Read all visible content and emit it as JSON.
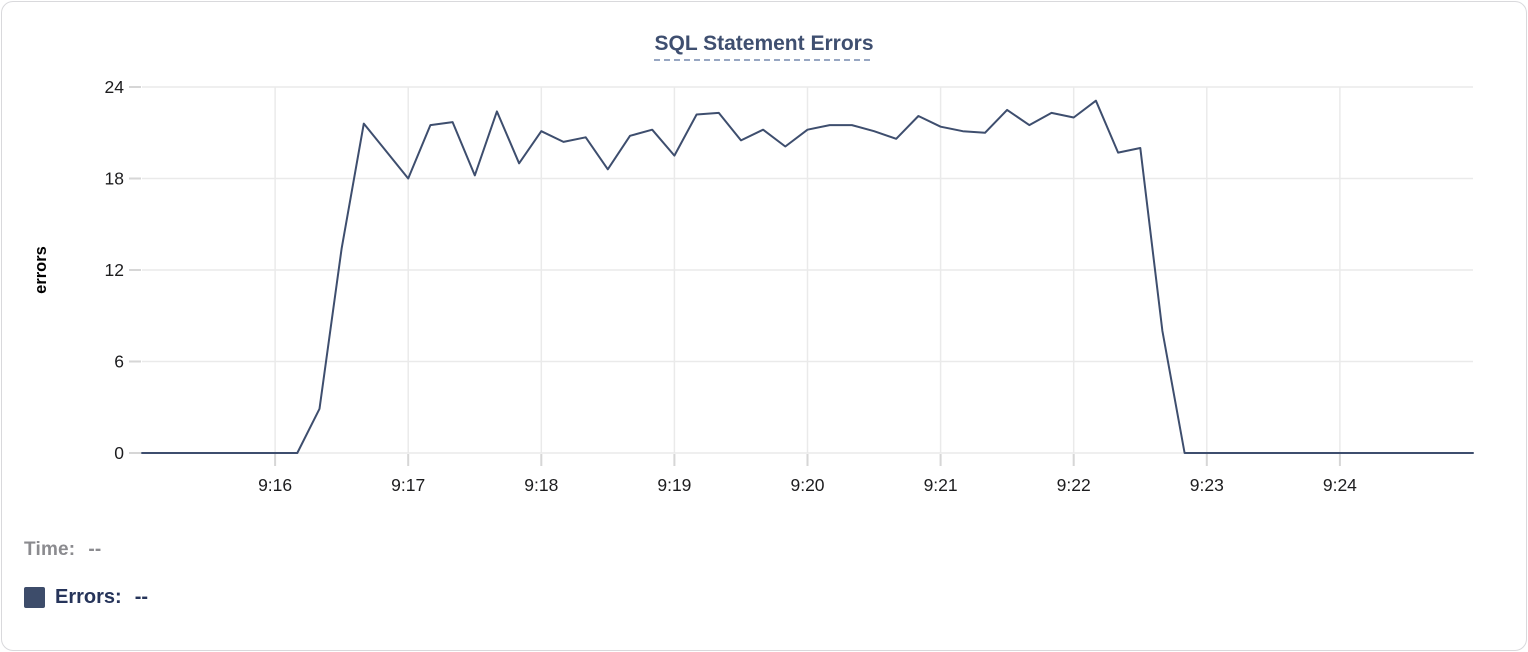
{
  "chart_data": {
    "type": "line",
    "title": "SQL Statement Errors",
    "xlabel": "",
    "ylabel": "errors",
    "ylim": [
      0,
      24
    ],
    "y_ticks": [
      0,
      6,
      12,
      18,
      24
    ],
    "x_tick_labels": [
      "9:16",
      "9:17",
      "9:18",
      "9:19",
      "9:20",
      "9:21",
      "9:22",
      "9:23",
      "9:24"
    ],
    "grid": true,
    "legend_position": "bottom-left",
    "x_times": [
      "9:15:00",
      "9:15:10",
      "9:15:20",
      "9:15:30",
      "9:15:40",
      "9:15:50",
      "9:16:00",
      "9:16:10",
      "9:16:20",
      "9:16:30",
      "9:16:40",
      "9:16:50",
      "9:17:00",
      "9:17:10",
      "9:17:20",
      "9:17:30",
      "9:17:40",
      "9:17:50",
      "9:18:00",
      "9:18:10",
      "9:18:20",
      "9:18:30",
      "9:18:40",
      "9:18:50",
      "9:19:00",
      "9:19:10",
      "9:19:20",
      "9:19:30",
      "9:19:40",
      "9:19:50",
      "9:20:00",
      "9:20:10",
      "9:20:20",
      "9:20:30",
      "9:20:40",
      "9:20:50",
      "9:21:00",
      "9:21:10",
      "9:21:20",
      "9:21:30",
      "9:21:40",
      "9:21:50",
      "9:22:00",
      "9:22:10",
      "9:22:20",
      "9:22:30",
      "9:22:40",
      "9:22:50",
      "9:23:00",
      "9:23:10",
      "9:23:20",
      "9:23:30",
      "9:23:40",
      "9:23:50",
      "9:24:00",
      "9:24:10",
      "9:24:20",
      "9:24:30",
      "9:24:40",
      "9:24:50",
      "9:25:00"
    ],
    "series": [
      {
        "name": "Errors",
        "color": "#3e4e6e",
        "values": [
          0,
          0,
          0,
          0,
          0,
          0,
          0,
          0,
          2.9,
          13.4,
          21.6,
          19.8,
          18,
          21.5,
          21.7,
          18.2,
          22.4,
          19,
          21.1,
          20.4,
          20.7,
          18.6,
          20.8,
          21.2,
          19.5,
          22.2,
          22.3,
          20.5,
          21.2,
          20.1,
          21.2,
          21.5,
          21.5,
          21.1,
          20.6,
          22.1,
          21.4,
          21.1,
          21,
          22.5,
          21.5,
          22.3,
          22,
          23.1,
          19.7,
          20,
          8,
          0,
          0,
          0,
          0,
          0,
          0,
          0,
          0,
          0,
          0,
          0,
          0,
          0,
          0
        ]
      }
    ]
  },
  "readout": {
    "time_label": "Time:",
    "time_value": "--",
    "errors_label": "Errors:",
    "errors_value": "--"
  },
  "colors": {
    "line": "#3e4e6e",
    "title": "#3f4f70",
    "title_underline": "#97a6c2",
    "grid": "#eaeaea",
    "tick": "#d6d6d6",
    "axis_text": "#1d1d1f",
    "time_text": "#8b8b8f",
    "errors_text": "#26345a",
    "swatch": "#3d4c6a",
    "panel_border": "#d9d9dc"
  }
}
